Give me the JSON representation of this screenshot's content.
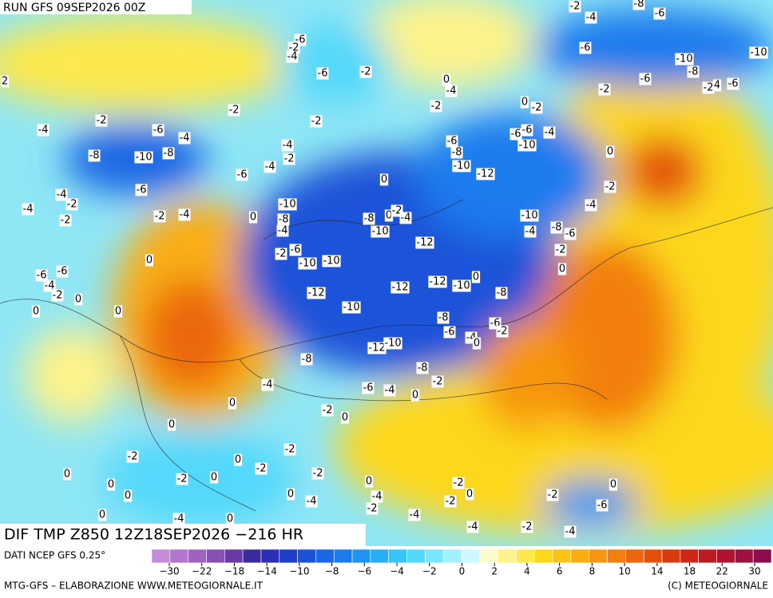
{
  "header": {
    "title": "RUN GFS 09SEP2026 00Z"
  },
  "map": {
    "title": "DIF TMP Z850 12Z18SEP2026 −216 HR",
    "contour_labels": [
      -2,
      -4,
      -8,
      -6,
      -6,
      -2,
      -4,
      -6,
      -10,
      -10,
      2,
      -6,
      -2,
      -8,
      -6,
      -2,
      4,
      -6,
      0,
      -4,
      -2,
      -2,
      -2,
      0,
      -2,
      -2,
      -2,
      -4,
      -6,
      -4,
      -6,
      -6,
      -4,
      -6,
      -4,
      -8,
      -10,
      -8,
      -8,
      -2,
      -10,
      0,
      -10,
      -12,
      -6,
      -4,
      0,
      -6,
      -2,
      -4,
      -2,
      -4,
      -2,
      -10,
      -2,
      -4,
      0,
      -8,
      -8,
      0,
      -2,
      -4,
      -4,
      -10,
      -4,
      -10,
      -4,
      -8,
      -6,
      -12,
      -6,
      -2,
      -2,
      0,
      -10,
      -10,
      -6,
      -6,
      0,
      -4,
      -12,
      -12,
      -10,
      0,
      -2,
      0,
      -12,
      -8,
      0,
      0,
      -10,
      -8,
      -6,
      -2,
      -6,
      -4,
      0,
      -12,
      -10,
      -8,
      -8,
      -2,
      -4,
      -6,
      -4,
      0,
      0,
      -2,
      0,
      0,
      -2,
      -2,
      0,
      -2,
      0,
      -2,
      -2,
      0,
      0,
      -2,
      0,
      0,
      0,
      -4,
      0,
      0,
      -2,
      -4,
      -2,
      -2,
      -6,
      0,
      -4,
      -4,
      0,
      -4,
      -2,
      -4
    ]
  },
  "colorbar": {
    "source": "DATI NCEP GFS 0.25°",
    "colors": [
      "#c58bd8",
      "#b277cc",
      "#9e63bf",
      "#8a4fb2",
      "#6a3aa6",
      "#3a2a9c",
      "#2a2fb4",
      "#1f3fc8",
      "#1a52d8",
      "#1a66e4",
      "#1c7cee",
      "#2094f4",
      "#28aef8",
      "#38c4fa",
      "#52d8fb",
      "#78e6fc",
      "#a2f0fd",
      "#cdf8fd",
      "#fdfbc8",
      "#fdf38a",
      "#fde84e",
      "#fcd71a",
      "#fbc414",
      "#f9ad12",
      "#f79610",
      "#f27f0e",
      "#eb660c",
      "#e3500c",
      "#d83a10",
      "#cc2616",
      "#be1a24",
      "#ae1432",
      "#9e1040",
      "#8e0c4c"
    ],
    "ticks": [
      {
        "value": -30,
        "label": "−30"
      },
      {
        "value": -22,
        "label": "−22"
      },
      {
        "value": -18,
        "label": "−18"
      },
      {
        "value": -14,
        "label": "−14"
      },
      {
        "value": -10,
        "label": "−10"
      },
      {
        "value": -8,
        "label": "−8"
      },
      {
        "value": -6,
        "label": "−6"
      },
      {
        "value": -4,
        "label": "−4"
      },
      {
        "value": -2,
        "label": "−2"
      },
      0,
      2,
      4,
      6,
      8,
      10,
      14,
      18,
      22,
      30
    ]
  },
  "footer": {
    "left": "MTG-GFS – ELABORAZIONE WWW.METEOGIORNALE.IT",
    "right": "(C) METEOGIORNALE"
  }
}
